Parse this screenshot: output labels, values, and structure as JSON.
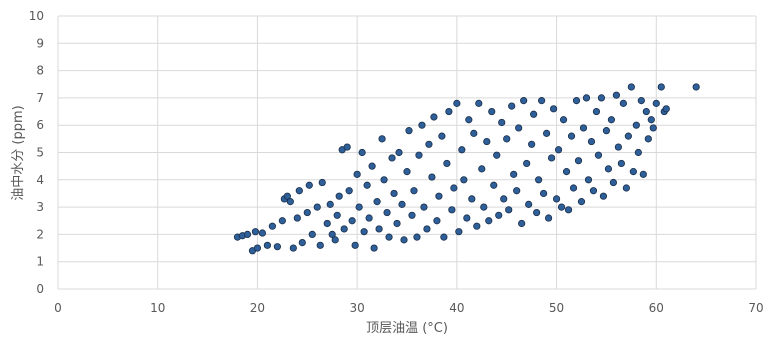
{
  "chart_data": {
    "type": "scatter",
    "title": "",
    "xlabel": "顶层油温 (°C)",
    "ylabel": "油中水分 (ppm)",
    "xlim": [
      0,
      70
    ],
    "ylim": [
      0,
      10
    ],
    "xticks": [
      0,
      10,
      20,
      30,
      40,
      50,
      60,
      70
    ],
    "yticks": [
      0,
      1,
      2,
      3,
      4,
      5,
      6,
      7,
      8,
      9,
      10
    ],
    "grid": true,
    "legend": "none",
    "marker_color": "#2e5f99",
    "marker_edge_color": "#1a2f4a",
    "series": [
      {
        "values": [
          [
            18.0,
            1.9
          ],
          [
            18.5,
            1.95
          ],
          [
            19.0,
            2.0
          ],
          [
            19.5,
            1.4
          ],
          [
            19.8,
            2.1
          ],
          [
            20.0,
            1.5
          ],
          [
            20.5,
            2.05
          ],
          [
            21.0,
            1.6
          ],
          [
            21.5,
            2.3
          ],
          [
            22.0,
            1.55
          ],
          [
            22.5,
            2.5
          ],
          [
            22.7,
            3.3
          ],
          [
            23.0,
            3.4
          ],
          [
            23.3,
            3.2
          ],
          [
            23.6,
            1.5
          ],
          [
            24.0,
            2.6
          ],
          [
            24.2,
            3.6
          ],
          [
            24.5,
            1.7
          ],
          [
            25.0,
            2.8
          ],
          [
            25.2,
            3.8
          ],
          [
            25.5,
            2.0
          ],
          [
            26.0,
            3.0
          ],
          [
            26.3,
            1.6
          ],
          [
            26.5,
            3.9
          ],
          [
            27.0,
            2.4
          ],
          [
            27.3,
            3.1
          ],
          [
            27.5,
            2.0
          ],
          [
            27.8,
            1.8
          ],
          [
            28.0,
            2.7
          ],
          [
            28.2,
            3.4
          ],
          [
            28.5,
            5.1
          ],
          [
            28.7,
            2.2
          ],
          [
            29.0,
            5.2
          ],
          [
            29.2,
            3.6
          ],
          [
            29.5,
            2.5
          ],
          [
            29.8,
            1.6
          ],
          [
            30.0,
            4.2
          ],
          [
            30.2,
            3.0
          ],
          [
            30.5,
            5.0
          ],
          [
            30.7,
            2.1
          ],
          [
            31.0,
            3.8
          ],
          [
            31.2,
            2.6
          ],
          [
            31.5,
            4.5
          ],
          [
            31.7,
            1.5
          ],
          [
            32.0,
            3.2
          ],
          [
            32.2,
            2.2
          ],
          [
            32.5,
            5.5
          ],
          [
            32.7,
            4.0
          ],
          [
            33.0,
            2.8
          ],
          [
            33.2,
            1.9
          ],
          [
            33.5,
            4.8
          ],
          [
            33.7,
            3.5
          ],
          [
            34.0,
            2.4
          ],
          [
            34.2,
            5.0
          ],
          [
            34.5,
            3.1
          ],
          [
            34.7,
            1.8
          ],
          [
            35.0,
            4.3
          ],
          [
            35.2,
            5.8
          ],
          [
            35.5,
            2.7
          ],
          [
            35.7,
            3.6
          ],
          [
            36.0,
            1.9
          ],
          [
            36.2,
            4.9
          ],
          [
            36.5,
            6.0
          ],
          [
            36.7,
            3.0
          ],
          [
            37.0,
            2.2
          ],
          [
            37.2,
            5.3
          ],
          [
            37.5,
            4.1
          ],
          [
            37.7,
            6.3
          ],
          [
            38.0,
            2.5
          ],
          [
            38.2,
            3.4
          ],
          [
            38.5,
            5.6
          ],
          [
            38.7,
            1.9
          ],
          [
            39.0,
            4.6
          ],
          [
            39.2,
            6.5
          ],
          [
            39.5,
            2.9
          ],
          [
            39.7,
            3.7
          ],
          [
            40.0,
            6.8
          ],
          [
            40.2,
            2.1
          ],
          [
            40.5,
            5.1
          ],
          [
            40.7,
            4.0
          ],
          [
            41.0,
            2.6
          ],
          [
            41.2,
            6.2
          ],
          [
            41.5,
            3.3
          ],
          [
            41.7,
            5.7
          ],
          [
            42.0,
            2.3
          ],
          [
            42.2,
            6.8
          ],
          [
            42.5,
            4.4
          ],
          [
            42.7,
            3.0
          ],
          [
            43.0,
            5.4
          ],
          [
            43.2,
            2.5
          ],
          [
            43.5,
            6.5
          ],
          [
            43.7,
            3.8
          ],
          [
            44.0,
            4.9
          ],
          [
            44.2,
            2.7
          ],
          [
            44.5,
            6.1
          ],
          [
            44.7,
            3.3
          ],
          [
            45.0,
            5.5
          ],
          [
            45.2,
            2.9
          ],
          [
            45.5,
            6.7
          ],
          [
            45.7,
            4.2
          ],
          [
            46.0,
            3.6
          ],
          [
            46.2,
            5.9
          ],
          [
            46.5,
            2.4
          ],
          [
            46.7,
            6.9
          ],
          [
            47.0,
            4.6
          ],
          [
            47.2,
            3.1
          ],
          [
            47.5,
            5.3
          ],
          [
            47.7,
            6.4
          ],
          [
            48.0,
            2.8
          ],
          [
            48.2,
            4.0
          ],
          [
            48.5,
            6.9
          ],
          [
            48.7,
            3.5
          ],
          [
            49.0,
            5.7
          ],
          [
            49.2,
            2.6
          ],
          [
            49.5,
            4.8
          ],
          [
            49.7,
            6.6
          ],
          [
            50.0,
            3.3
          ],
          [
            50.2,
            5.1
          ],
          [
            50.5,
            3.0
          ],
          [
            50.7,
            6.2
          ],
          [
            51.0,
            4.3
          ],
          [
            51.2,
            2.9
          ],
          [
            51.5,
            5.6
          ],
          [
            51.7,
            3.7
          ],
          [
            52.0,
            6.9
          ],
          [
            52.2,
            4.7
          ],
          [
            52.5,
            3.2
          ],
          [
            52.7,
            5.9
          ],
          [
            53.0,
            7.0
          ],
          [
            53.2,
            4.0
          ],
          [
            53.5,
            5.4
          ],
          [
            53.7,
            3.6
          ],
          [
            54.0,
            6.5
          ],
          [
            54.2,
            4.9
          ],
          [
            54.5,
            7.0
          ],
          [
            54.7,
            3.4
          ],
          [
            55.0,
            5.8
          ],
          [
            55.2,
            4.4
          ],
          [
            55.5,
            6.2
          ],
          [
            55.7,
            3.9
          ],
          [
            56.0,
            7.1
          ],
          [
            56.2,
            5.2
          ],
          [
            56.5,
            4.6
          ],
          [
            56.7,
            6.8
          ],
          [
            57.0,
            3.7
          ],
          [
            57.2,
            5.6
          ],
          [
            57.5,
            7.4
          ],
          [
            57.7,
            4.3
          ],
          [
            58.0,
            6.0
          ],
          [
            58.2,
            5.0
          ],
          [
            58.5,
            6.9
          ],
          [
            58.7,
            4.2
          ],
          [
            59.0,
            6.5
          ],
          [
            59.2,
            5.5
          ],
          [
            59.5,
            6.2
          ],
          [
            59.7,
            5.9
          ],
          [
            60.0,
            6.8
          ],
          [
            60.5,
            7.4
          ],
          [
            60.8,
            6.5
          ],
          [
            61.0,
            6.6
          ],
          [
            64.0,
            7.4
          ]
        ]
      }
    ]
  }
}
